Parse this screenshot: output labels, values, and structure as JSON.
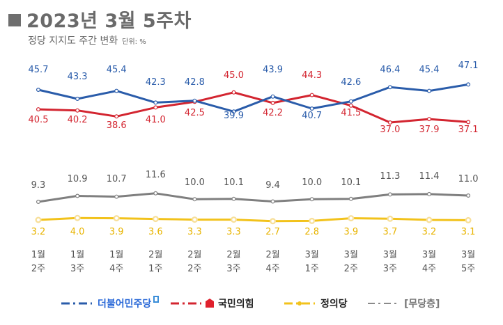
{
  "header": {
    "title": "2023년 3월 5주차",
    "subtitle": "정당 지지도 주간 변화",
    "unit": "단위: %"
  },
  "chart_data": {
    "type": "line",
    "title": "2023년 3월 5주차",
    "subtitle": "정당 지지도 주간 변화",
    "unit": "%",
    "categories": [
      [
        "1월",
        "2주"
      ],
      [
        "1월",
        "3주"
      ],
      [
        "1월",
        "4주"
      ],
      [
        "2월",
        "1주"
      ],
      [
        "2월",
        "2주"
      ],
      [
        "2월",
        "3주"
      ],
      [
        "2월",
        "4주"
      ],
      [
        "3월",
        "1주"
      ],
      [
        "3월",
        "2주"
      ],
      [
        "3월",
        "3주"
      ],
      [
        "3월",
        "4주"
      ],
      [
        "3월",
        "5주"
      ]
    ],
    "series": [
      {
        "name": "더불어민주당",
        "color": "#2a5caa",
        "values": [
          45.7,
          43.3,
          45.4,
          42.3,
          42.8,
          39.9,
          43.9,
          40.7,
          42.6,
          46.4,
          45.4,
          47.1
        ]
      },
      {
        "name": "국민의힘",
        "color": "#d32530",
        "values": [
          40.5,
          40.2,
          38.6,
          41.0,
          42.5,
          45.0,
          42.2,
          44.3,
          41.5,
          37.0,
          37.9,
          37.1
        ]
      },
      {
        "name": "정의당",
        "color": "#f2c21b",
        "values": [
          3.2,
          4.0,
          3.9,
          3.6,
          3.3,
          3.3,
          2.7,
          2.8,
          3.9,
          3.7,
          3.2,
          3.1
        ]
      },
      {
        "name": "[무당층]",
        "color": "#7f7f7f",
        "values": [
          9.3,
          10.9,
          10.7,
          11.6,
          10.0,
          10.1,
          9.4,
          10.0,
          10.1,
          11.3,
          11.4,
          11.0
        ]
      }
    ],
    "label_colors": {
      "더불어민주당": "#2a5caa",
      "국민의힘": "#d32530",
      "정의당": "#e8b400",
      "[무당층]": "#555555"
    },
    "grid": false
  },
  "legend": {
    "items": [
      {
        "label": "더불어민주당",
        "color": "#2a5caa",
        "style": "dash-dot"
      },
      {
        "label": "국민의힘",
        "color": "#d32530",
        "style": "dash-dot"
      },
      {
        "label": "정의당",
        "color": "#f2c21b",
        "style": "dash-dot"
      },
      {
        "label": "[무당층]",
        "color": "#8a8a8a",
        "style": "dash-dot"
      }
    ]
  }
}
